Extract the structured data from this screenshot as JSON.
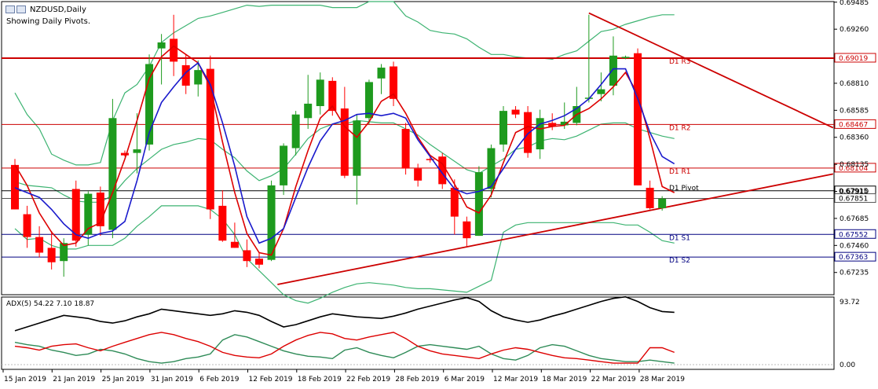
{
  "window": {
    "title": "NZDUSD,Daily",
    "subtitle": "Showing Daily Pivots."
  },
  "chart_data": {
    "type": "candlestick",
    "symbol": "NZDUSD",
    "timeframe": "Daily",
    "price_axis": {
      "range": [
        0.6705,
        0.6949
      ],
      "ticks": [
        "0.69485",
        "0.69260",
        "0.68810",
        "0.68585",
        "0.68360",
        "0.68135",
        "0.67910",
        "0.67685",
        "0.67460",
        "0.67235"
      ]
    },
    "date_labels": [
      "15 Jan 2019",
      "21 Jan 2019",
      "25 Jan 2019",
      "31 Jan 2019",
      "6 Feb 2019",
      "12 Feb 2019",
      "18 Feb 2019",
      "22 Feb 2019",
      "28 Feb 2019",
      "6 Mar 2019",
      "12 Mar 2019",
      "18 Mar 2019",
      "22 Mar 2019",
      "28 Mar 2019"
    ],
    "colors": {
      "bull": "#1e9a1e",
      "bear": "#ff0000",
      "ma_fast": "#dd0000",
      "ma_slow": "#1a1acc",
      "bands": "#3cb371",
      "pivot_red": "#cc0000",
      "pivot_blue": "#000080"
    },
    "candles": [
      {
        "d": "14 Jan",
        "o": 0.6813,
        "h": 0.6818,
        "l": 0.6776,
        "c": 0.6776
      },
      {
        "d": "15 Jan",
        "o": 0.6772,
        "h": 0.6779,
        "l": 0.6744,
        "c": 0.6753
      },
      {
        "d": "16 Jan",
        "o": 0.6753,
        "h": 0.6762,
        "l": 0.6736,
        "c": 0.674
      },
      {
        "d": "17 Jan",
        "o": 0.6744,
        "h": 0.6758,
        "l": 0.6726,
        "c": 0.6732
      },
      {
        "d": "18 Jan",
        "o": 0.6733,
        "h": 0.6752,
        "l": 0.672,
        "c": 0.6748
      },
      {
        "d": "21 Jan",
        "o": 0.6793,
        "h": 0.68,
        "l": 0.6745,
        "c": 0.675
      },
      {
        "d": "22 Jan",
        "o": 0.6755,
        "h": 0.6791,
        "l": 0.6746,
        "c": 0.6789
      },
      {
        "d": "23 Jan",
        "o": 0.679,
        "h": 0.6795,
        "l": 0.6754,
        "c": 0.6762
      },
      {
        "d": "24 Jan",
        "o": 0.6759,
        "h": 0.6868,
        "l": 0.6752,
        "c": 0.6852
      },
      {
        "d": "25 Jan",
        "o": 0.6823,
        "h": 0.6825,
        "l": 0.682,
        "c": 0.6821
      },
      {
        "d": "28 Jan",
        "o": 0.6823,
        "h": 0.6856,
        "l": 0.6806,
        "c": 0.6826
      },
      {
        "d": "29 Jan",
        "o": 0.683,
        "h": 0.6905,
        "l": 0.6825,
        "c": 0.6897
      },
      {
        "d": "30 Jan",
        "o": 0.691,
        "h": 0.6922,
        "l": 0.688,
        "c": 0.6915
      },
      {
        "d": "31 Jan",
        "o": 0.6918,
        "h": 0.6938,
        "l": 0.6887,
        "c": 0.6899
      },
      {
        "d": "1 Feb",
        "o": 0.6896,
        "h": 0.6905,
        "l": 0.6872,
        "c": 0.6879
      },
      {
        "d": "4 Feb",
        "o": 0.688,
        "h": 0.69,
        "l": 0.687,
        "c": 0.6892
      },
      {
        "d": "5 Feb",
        "o": 0.6893,
        "h": 0.6904,
        "l": 0.6768,
        "c": 0.6776
      },
      {
        "d": "6 Feb",
        "o": 0.6779,
        "h": 0.6792,
        "l": 0.6749,
        "c": 0.675
      },
      {
        "d": "7 Feb",
        "o": 0.6749,
        "h": 0.6765,
        "l": 0.6744,
        "c": 0.6744
      },
      {
        "d": "8 Feb",
        "o": 0.6742,
        "h": 0.6751,
        "l": 0.6728,
        "c": 0.6733
      },
      {
        "d": "11 Feb",
        "o": 0.6735,
        "h": 0.674,
        "l": 0.6727,
        "c": 0.673
      },
      {
        "d": "12 Feb",
        "o": 0.6734,
        "h": 0.68,
        "l": 0.6733,
        "c": 0.6796
      },
      {
        "d": "13 Feb",
        "o": 0.6796,
        "h": 0.6831,
        "l": 0.6788,
        "c": 0.6829
      },
      {
        "d": "14 Feb",
        "o": 0.6827,
        "h": 0.6858,
        "l": 0.6821,
        "c": 0.6855
      },
      {
        "d": "15 Feb",
        "o": 0.6852,
        "h": 0.6888,
        "l": 0.6843,
        "c": 0.6864
      },
      {
        "d": "18 Feb",
        "o": 0.6862,
        "h": 0.689,
        "l": 0.6855,
        "c": 0.6884
      },
      {
        "d": "19 Feb",
        "o": 0.6883,
        "h": 0.6886,
        "l": 0.6854,
        "c": 0.6858
      },
      {
        "d": "20 Feb",
        "o": 0.686,
        "h": 0.6878,
        "l": 0.6802,
        "c": 0.6804
      },
      {
        "d": "21 Feb",
        "o": 0.6804,
        "h": 0.6855,
        "l": 0.678,
        "c": 0.685
      },
      {
        "d": "22 Feb",
        "o": 0.6852,
        "h": 0.6884,
        "l": 0.6847,
        "c": 0.6882
      },
      {
        "d": "25 Feb",
        "o": 0.6885,
        "h": 0.6897,
        "l": 0.6872,
        "c": 0.6894
      },
      {
        "d": "26 Feb",
        "o": 0.6895,
        "h": 0.6899,
        "l": 0.6862,
        "c": 0.6868
      },
      {
        "d": "27 Feb",
        "o": 0.6843,
        "h": 0.6848,
        "l": 0.6805,
        "c": 0.681
      },
      {
        "d": "28 Feb",
        "o": 0.681,
        "h": 0.6814,
        "l": 0.6795,
        "c": 0.68
      },
      {
        "d": "1 Mar",
        "o": 0.6818,
        "h": 0.6821,
        "l": 0.6815,
        "c": 0.6817
      },
      {
        "d": "4 Mar",
        "o": 0.682,
        "h": 0.6823,
        "l": 0.6793,
        "c": 0.6797
      },
      {
        "d": "5 Mar",
        "o": 0.6794,
        "h": 0.6801,
        "l": 0.6755,
        "c": 0.677
      },
      {
        "d": "6 Mar",
        "o": 0.6766,
        "h": 0.677,
        "l": 0.6745,
        "c": 0.6752
      },
      {
        "d": "7 Mar",
        "o": 0.6754,
        "h": 0.6812,
        "l": 0.6754,
        "c": 0.6807
      },
      {
        "d": "8 Mar",
        "o": 0.6793,
        "h": 0.683,
        "l": 0.6786,
        "c": 0.6827
      },
      {
        "d": "11 Mar",
        "o": 0.683,
        "h": 0.6862,
        "l": 0.6824,
        "c": 0.6858
      },
      {
        "d": "12 Mar",
        "o": 0.6859,
        "h": 0.6862,
        "l": 0.6852,
        "c": 0.6855
      },
      {
        "d": "13 Mar",
        "o": 0.6857,
        "h": 0.6862,
        "l": 0.6819,
        "c": 0.6823
      },
      {
        "d": "14 Mar",
        "o": 0.6826,
        "h": 0.6859,
        "l": 0.6818,
        "c": 0.6852
      },
      {
        "d": "15 Mar",
        "o": 0.6848,
        "h": 0.6856,
        "l": 0.6842,
        "c": 0.6845
      },
      {
        "d": "18 Mar",
        "o": 0.6846,
        "h": 0.6865,
        "l": 0.6843,
        "c": 0.6849
      },
      {
        "d": "19 Mar",
        "o": 0.6848,
        "h": 0.6878,
        "l": 0.6846,
        "c": 0.6862
      },
      {
        "d": "20 Mar",
        "o": 0.6869,
        "h": 0.6938,
        "l": 0.6865,
        "c": 0.6869
      },
      {
        "d": "21 Mar",
        "o": 0.6872,
        "h": 0.689,
        "l": 0.6866,
        "c": 0.6876
      },
      {
        "d": "22 Mar",
        "o": 0.6879,
        "h": 0.692,
        "l": 0.6871,
        "c": 0.6904
      },
      {
        "d": "25 Mar",
        "o": 0.6902,
        "h": 0.6904,
        "l": 0.6901,
        "c": 0.6903
      },
      {
        "d": "26 Mar",
        "o": 0.6906,
        "h": 0.691,
        "l": 0.6796,
        "c": 0.6796
      },
      {
        "d": "27 Mar",
        "o": 0.6794,
        "h": 0.68,
        "l": 0.6776,
        "c": 0.6777
      },
      {
        "d": "28 Mar",
        "o": 0.6777,
        "h": 0.6787,
        "l": 0.6775,
        "c": 0.6785
      }
    ],
    "ma_fast": [
      0.6813,
      0.6796,
      0.6773,
      0.6757,
      0.6746,
      0.6748,
      0.676,
      0.6765,
      0.679,
      0.6818,
      0.685,
      0.6885,
      0.6903,
      0.6912,
      0.6905,
      0.6898,
      0.6878,
      0.6832,
      0.679,
      0.6756,
      0.674,
      0.6738,
      0.676,
      0.6795,
      0.6825,
      0.6852,
      0.6862,
      0.6845,
      0.6836,
      0.6849,
      0.6866,
      0.6872,
      0.6856,
      0.6836,
      0.6821,
      0.6814,
      0.6797,
      0.6778,
      0.6773,
      0.6788,
      0.6815,
      0.684,
      0.6845,
      0.6843,
      0.6845,
      0.6846,
      0.6855,
      0.686,
      0.6868,
      0.6878,
      0.689,
      0.6872,
      0.6835,
      0.6795,
      0.679
    ],
    "ma_slow": [
      0.6794,
      0.679,
      0.6786,
      0.6776,
      0.6764,
      0.6755,
      0.6752,
      0.6756,
      0.6758,
      0.6766,
      0.68,
      0.684,
      0.6865,
      0.6878,
      0.689,
      0.6898,
      0.688,
      0.6848,
      0.6812,
      0.677,
      0.6748,
      0.6752,
      0.676,
      0.6786,
      0.6811,
      0.6833,
      0.6847,
      0.685,
      0.6855,
      0.6856,
      0.6854,
      0.6856,
      0.6852,
      0.6834,
      0.682,
      0.6806,
      0.6793,
      0.6789,
      0.6791,
      0.6795,
      0.681,
      0.6826,
      0.6839,
      0.6847,
      0.685,
      0.6854,
      0.686,
      0.6868,
      0.688,
      0.6893,
      0.6893,
      0.6868,
      0.684,
      0.682,
      0.6814
    ],
    "band_upper": [
      0.6873,
      0.6855,
      0.6843,
      0.6822,
      0.6817,
      0.6813,
      0.6813,
      0.6815,
      0.685,
      0.6873,
      0.688,
      0.6895,
      0.6915,
      0.6923,
      0.6929,
      0.6935,
      0.6937,
      0.694,
      0.6943,
      0.6946,
      0.6945,
      0.6946,
      0.6946,
      0.6946,
      0.6946,
      0.6946,
      0.6944,
      0.6944,
      0.6944,
      0.6949,
      0.6949,
      0.6949,
      0.6937,
      0.6932,
      0.6925,
      0.6923,
      0.6922,
      0.6918,
      0.6911,
      0.6905,
      0.6905,
      0.6903,
      0.6902,
      0.6902,
      0.6901,
      0.6905,
      0.6908,
      0.6916,
      0.6924,
      0.6926,
      0.693,
      0.6933,
      0.6936,
      0.6938,
      0.6938
    ],
    "band_middle": [
      0.6799,
      0.6796,
      0.6795,
      0.6794,
      0.6788,
      0.6783,
      0.6782,
      0.6782,
      0.6788,
      0.68,
      0.681,
      0.6818,
      0.6826,
      0.683,
      0.6832,
      0.6835,
      0.6834,
      0.6826,
      0.6819,
      0.6808,
      0.68,
      0.6804,
      0.681,
      0.6822,
      0.6835,
      0.6843,
      0.6847,
      0.6847,
      0.685,
      0.6849,
      0.6848,
      0.6848,
      0.6843,
      0.6838,
      0.683,
      0.6823,
      0.6816,
      0.6809,
      0.6806,
      0.6812,
      0.6818,
      0.6826,
      0.6828,
      0.6833,
      0.6835,
      0.6834,
      0.6837,
      0.6842,
      0.6847,
      0.6848,
      0.6848,
      0.6843,
      0.684,
      0.6837,
      0.6835
    ],
    "band_lower": [
      0.676,
      0.6751,
      0.6752,
      0.6746,
      0.6743,
      0.6743,
      0.6746,
      0.6746,
      0.6746,
      0.6752,
      0.6762,
      0.677,
      0.6779,
      0.6779,
      0.6779,
      0.6779,
      0.6776,
      0.6768,
      0.6755,
      0.6735,
      0.6725,
      0.6715,
      0.6705,
      0.67,
      0.6698,
      0.6702,
      0.6707,
      0.6711,
      0.6714,
      0.6715,
      0.6714,
      0.6713,
      0.6711,
      0.671,
      0.671,
      0.6709,
      0.6708,
      0.6707,
      0.6712,
      0.6717,
      0.6757,
      0.6763,
      0.6765,
      0.6765,
      0.6765,
      0.6765,
      0.6765,
      0.6765,
      0.6765,
      0.6765,
      0.6763,
      0.6763,
      0.6757,
      0.675,
      0.6748
    ],
    "pivot_levels": [
      {
        "name": "D1 R3",
        "price": 0.69019,
        "tag": "0.69019",
        "kind": "red"
      },
      {
        "name": "D1 R2",
        "price": 0.68467,
        "tag": "0.68467",
        "kind": "red"
      },
      {
        "name": "D1 R1",
        "price": 0.68104,
        "tag": "0.68104",
        "kind": "red"
      },
      {
        "name": "D1 Pivot",
        "price": 0.67915,
        "tag": "0.67915",
        "kind": "black"
      },
      {
        "name": "",
        "price": 0.67851,
        "tag": "0.67851",
        "kind": "current"
      },
      {
        "name": "D1 S1",
        "price": 0.67552,
        "tag": "0.67552",
        "kind": "blue"
      },
      {
        "name": "D1 S2",
        "price": 0.67363,
        "tag": "0.67363",
        "kind": "blue"
      }
    ],
    "trendlines": [
      {
        "from": {
          "i": 21.5,
          "p": 0.67135
        },
        "to": {
          "i": 67,
          "p": 0.68055
        }
      },
      {
        "from": {
          "i": 47,
          "p": 0.69395
        },
        "to": {
          "i": 67,
          "p": 0.6844
        }
      }
    ],
    "adx_panel": {
      "label": "ADX(5) 54.22 7.10 18.87",
      "scale_max": "93.72",
      "scale_min": "0.00",
      "range": [
        0,
        93.72
      ],
      "adx": [
        50,
        55,
        60,
        65,
        70,
        68,
        66,
        62,
        60,
        63,
        68,
        72,
        78,
        76,
        74,
        72,
        70,
        72,
        76,
        74,
        70,
        62,
        55,
        58,
        63,
        68,
        72,
        70,
        68,
        67,
        66,
        69,
        73,
        78,
        82,
        86,
        90,
        93,
        88,
        76,
        68,
        64,
        61,
        64,
        69,
        73,
        78,
        83,
        88,
        92,
        94,
        88,
        80,
        75,
        74
      ],
      "plus_di": [
        30,
        28,
        25,
        30,
        32,
        33,
        28,
        24,
        30,
        35,
        40,
        45,
        48,
        45,
        40,
        36,
        30,
        22,
        18,
        16,
        15,
        20,
        30,
        38,
        44,
        48,
        46,
        40,
        38,
        42,
        45,
        48,
        40,
        30,
        24,
        20,
        18,
        16,
        14,
        20,
        25,
        28,
        26,
        22,
        18,
        15,
        14,
        12,
        10,
        8,
        8,
        8,
        28,
        28,
        22
      ],
      "minus_di": [
        35,
        32,
        30,
        25,
        22,
        18,
        20,
        26,
        24,
        20,
        14,
        10,
        8,
        10,
        14,
        16,
        20,
        38,
        45,
        42,
        36,
        30,
        24,
        20,
        17,
        16,
        14,
        25,
        28,
        22,
        18,
        15,
        22,
        30,
        32,
        30,
        28,
        26,
        30,
        20,
        14,
        12,
        18,
        28,
        32,
        30,
        24,
        18,
        14,
        12,
        10,
        10,
        12,
        10,
        8
      ]
    }
  }
}
